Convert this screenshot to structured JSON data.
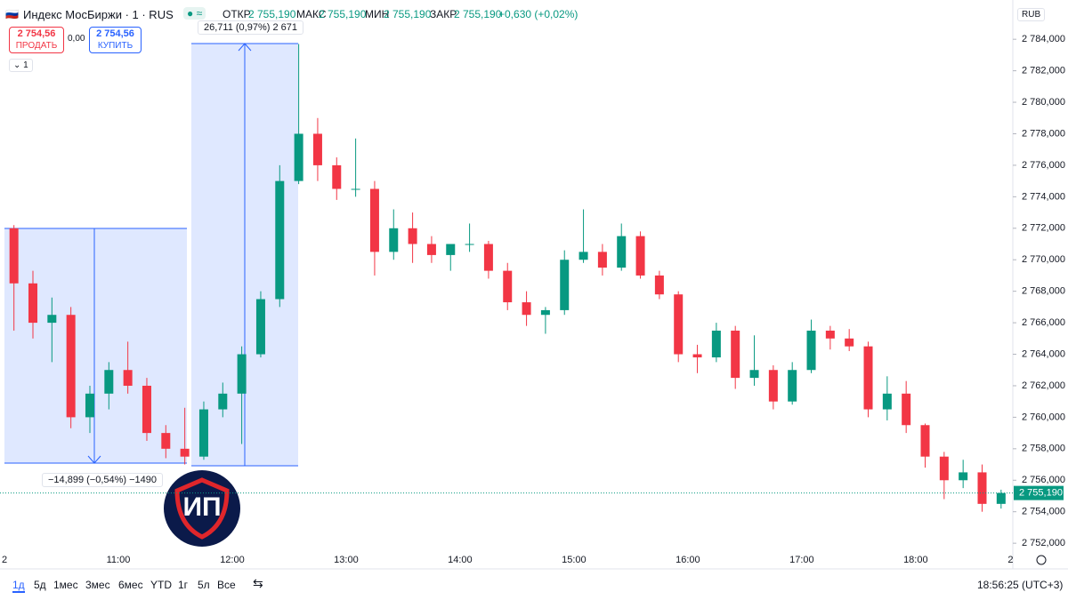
{
  "header": {
    "symbol": "Индекс МосБиржи · 1 · RUS",
    "open_label": "ОТКР",
    "open": "2 755,190",
    "high_label": "МАКС",
    "high": "2 755,190",
    "low_label": "МИН",
    "low": "2 755,190",
    "close_label": "ЗАКР",
    "close": "2 755,190",
    "change": "+0,630 (+0,02%)"
  },
  "trade": {
    "sell_price": "2 754,56",
    "sell": "ПРОДАТЬ",
    "spread": "0,00",
    "buy_price": "2 754,56",
    "buy": "КУПИТЬ"
  },
  "interval": "1",
  "currency": "RUB",
  "measures": [
    "26,711 (0,97%) 2 671",
    "−14,899 (−0,54%) −1490"
  ],
  "logo": "ИП",
  "ranges": [
    "1д",
    "5д",
    "1мес",
    "3мес",
    "6мес",
    "YTD",
    "1г",
    "5л",
    "Все"
  ],
  "clock": "18:56:25 (UTC+3)",
  "chart_data": {
    "type": "candlestick",
    "up_color": "#089981",
    "down_color": "#f23645",
    "categories": [
      "2",
      null,
      null,
      null,
      null,
      null,
      "11:00",
      null,
      null,
      null,
      null,
      null,
      "12:00",
      null,
      null,
      null,
      null,
      null,
      "13:00",
      null,
      null,
      null,
      null,
      null,
      "14:00",
      null,
      null,
      null,
      null,
      null,
      "15:00",
      null,
      null,
      null,
      null,
      null,
      "16:00",
      null,
      null,
      null,
      null,
      null,
      "17:00",
      null,
      null,
      null,
      null,
      null,
      "18:00",
      null,
      null,
      null,
      null,
      "2"
    ],
    "open": [
      2772,
      2768.5,
      2766,
      2766.5,
      2760,
      2761.5,
      2763,
      2762,
      2759,
      2758,
      2757.5,
      2760.5,
      2761.5,
      2764,
      2767.5,
      2775,
      2778,
      2776,
      2774.5,
      2774.5,
      2770.5,
      2772,
      2771,
      2770.3,
      2771,
      2771,
      2769.3,
      2767.3,
      2766.5,
      2766.8,
      2770,
      2770.5,
      2769.5,
      2771.5,
      2769,
      2767.8,
      2764,
      2763.8,
      2765.5,
      2762.5,
      2763,
      2761,
      2763,
      2765.5,
      2765,
      2764.5,
      2760.5,
      2761.5,
      2759.5,
      2757.5,
      2756,
      2756.5,
      2754.5,
      null
    ],
    "high": [
      2772.2,
      2769.3,
      2767.6,
      2767,
      2762,
      2763.5,
      2764.8,
      2762.5,
      2759.5,
      2760.6,
      2761,
      2762.2,
      2764.5,
      2768,
      2776,
      2783.7,
      2779,
      2776.5,
      2777.7,
      2775,
      2773.2,
      2773,
      2771.5,
      2771,
      2772.3,
      2771.2,
      2769.8,
      2768,
      2767,
      2770.6,
      2773.2,
      2771,
      2772.3,
      2771.8,
      2769.3,
      2768,
      2764.6,
      2766,
      2765.8,
      2765.2,
      2763.3,
      2763.5,
      2766.2,
      2765.8,
      2765.6,
      2764.8,
      2762.6,
      2762.3,
      2759.6,
      2757.8,
      2757.3,
      2757,
      2755.4,
      null
    ],
    "low": [
      2765.5,
      2765,
      2763.5,
      2759.3,
      2759,
      2760.5,
      2761.5,
      2758.5,
      2757.4,
      2757,
      2757.3,
      2760,
      2758.3,
      2763.8,
      2767,
      2774.8,
      2775,
      2773.8,
      2774,
      2769,
      2770,
      2769.8,
      2769.8,
      2769.3,
      2770.5,
      2768.8,
      2766.8,
      2765.8,
      2765.3,
      2766.5,
      2769.8,
      2769,
      2769.3,
      2768.8,
      2767.5,
      2763.5,
      2762.8,
      2763.5,
      2761.8,
      2762,
      2760.5,
      2760.8,
      2762.8,
      2764.3,
      2764.2,
      2760,
      2759.8,
      2759,
      2756.8,
      2754.8,
      2755.5,
      2754,
      2754.2,
      null
    ],
    "close": [
      2768.5,
      2766,
      2766.5,
      2760,
      2761.5,
      2763,
      2762,
      2759,
      2758,
      2757.5,
      2760.5,
      2761.5,
      2764,
      2767.5,
      2775,
      2778,
      2776,
      2774.5,
      2774.5,
      2770.5,
      2772,
      2771,
      2770.3,
      2771,
      2771,
      2769.3,
      2767.3,
      2766.5,
      2766.8,
      2770,
      2770.5,
      2769.5,
      2771.5,
      2769,
      2767.8,
      2764,
      2763.8,
      2765.5,
      2762.5,
      2763,
      2761,
      2763,
      2765.5,
      2765,
      2764.5,
      2760.5,
      2761.5,
      2759.5,
      2757.5,
      2756,
      2756.5,
      2754.5,
      2755.19,
      null
    ],
    "last_price": {
      "value": 2755.19,
      "label": "2 755,190"
    },
    "ylim": [
      2751.5,
      2784.8
    ],
    "yticks": [
      {
        "value": 2752,
        "label": "2 752,000"
      },
      {
        "value": 2754,
        "label": "2 754,000"
      },
      {
        "value": 2756,
        "label": "2 756,000"
      },
      {
        "value": 2758,
        "label": "2 758,000"
      },
      {
        "value": 2760,
        "label": "2 760,000"
      },
      {
        "value": 2762,
        "label": "2 762,000"
      },
      {
        "value": 2764,
        "label": "2 764,000"
      },
      {
        "value": 2766,
        "label": "2 766,000"
      },
      {
        "value": 2768,
        "label": "2 768,000"
      },
      {
        "value": 2770,
        "label": "2 770,000"
      },
      {
        "value": 2772,
        "label": "2 772,000"
      },
      {
        "value": 2774,
        "label": "2 774,000"
      },
      {
        "value": 2776,
        "label": "2 776,000"
      },
      {
        "value": 2778,
        "label": "2 778,000"
      },
      {
        "value": 2780,
        "label": "2 780,000"
      },
      {
        "value": 2782,
        "label": "2 782,000"
      },
      {
        "value": 2784,
        "label": "2 784,000"
      }
    ]
  }
}
